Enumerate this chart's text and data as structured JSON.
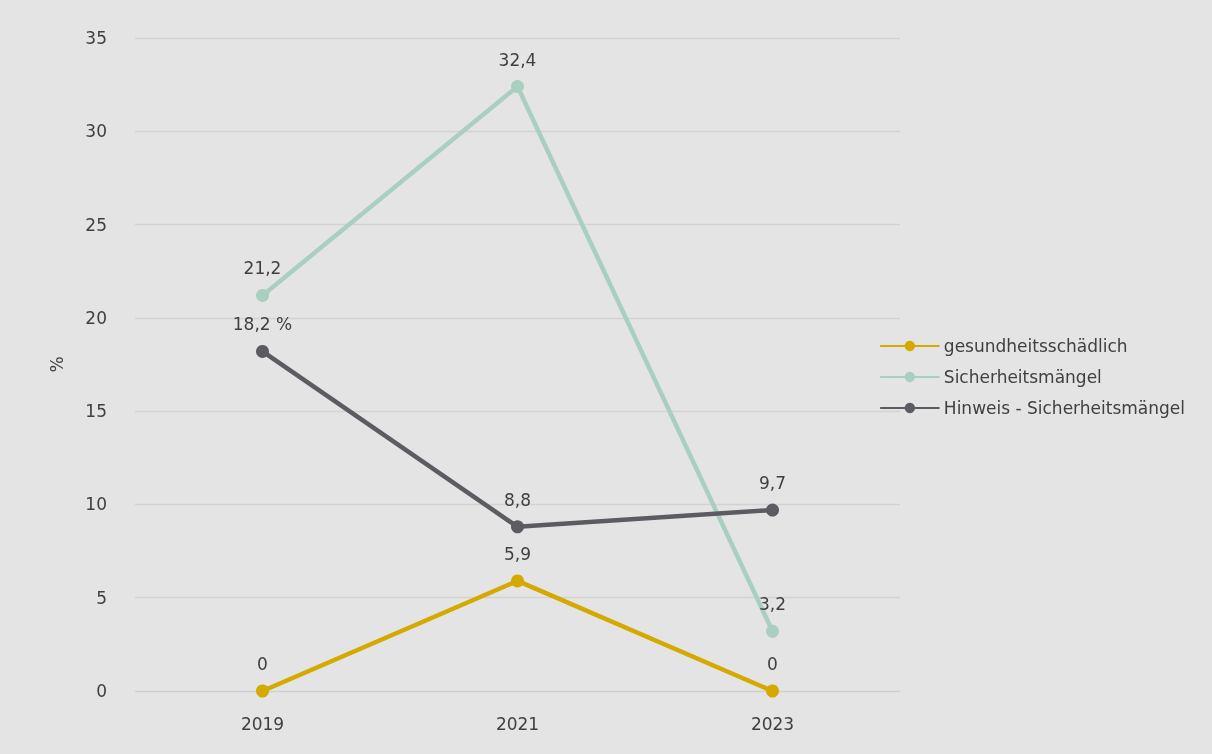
{
  "chart_data": {
    "type": "line",
    "ylabel": "%",
    "categories": [
      "2019",
      "2021",
      "2023"
    ],
    "series": [
      {
        "name": "gesundheitsschädlich",
        "color": "#d4a900",
        "values": [
          0,
          5.9,
          0
        ],
        "value_labels": [
          "0",
          "5,9",
          "0"
        ]
      },
      {
        "name": "Sicherheitsmängel",
        "color": "#a9cfc1",
        "values": [
          21.2,
          32.4,
          3.2
        ],
        "value_labels": [
          "21,2",
          "32,4",
          "3,2"
        ]
      },
      {
        "name": "Hinweis - Sicherheitsmängel",
        "color": "#5b5b61",
        "values": [
          18.2,
          8.8,
          9.7
        ],
        "value_labels": [
          "18,2 %",
          "8,8",
          "9,7"
        ]
      }
    ],
    "ylim": [
      0,
      35
    ],
    "yticks": [
      0,
      5,
      10,
      15,
      20,
      25,
      30,
      35
    ],
    "grid": "y",
    "legend": "right",
    "marker": "circle",
    "line_style": "solid"
  }
}
